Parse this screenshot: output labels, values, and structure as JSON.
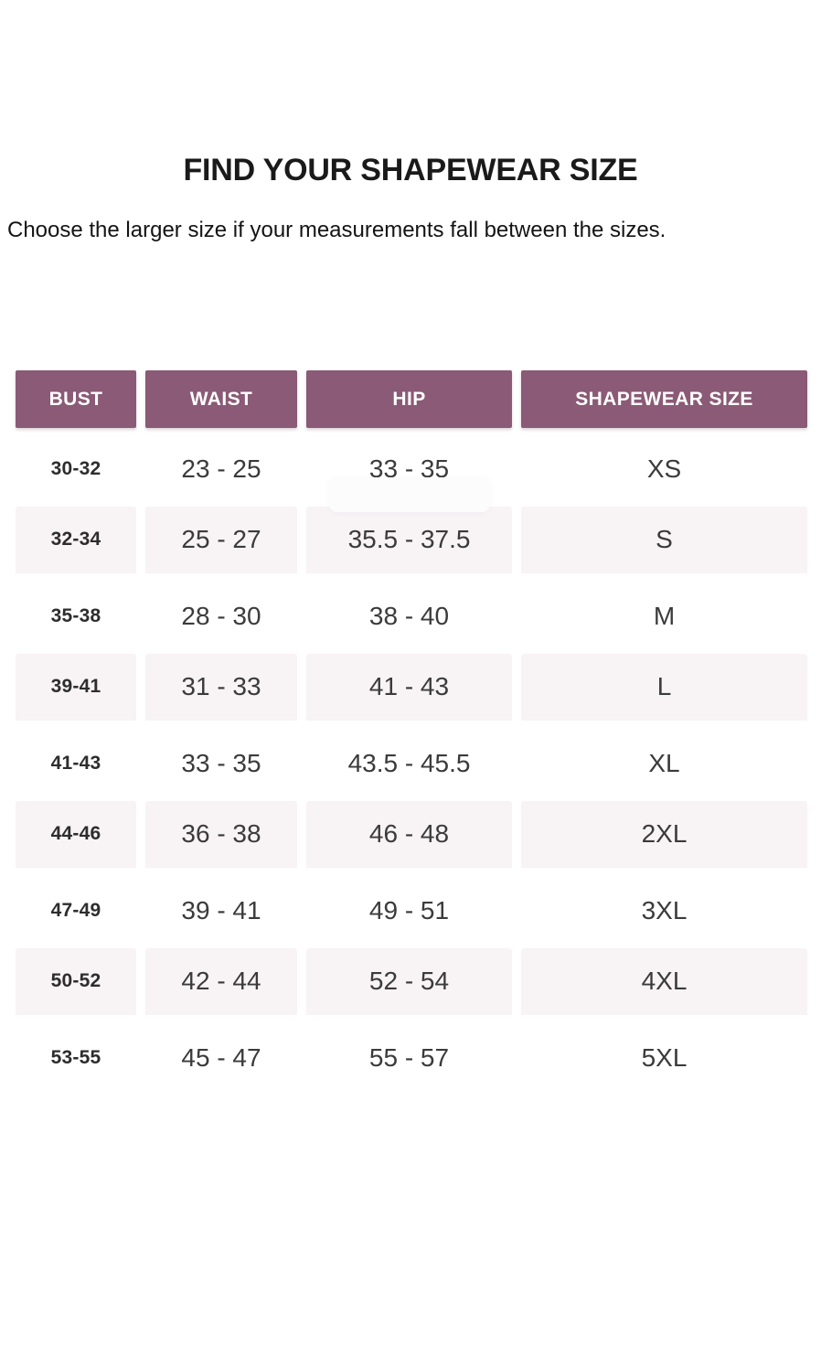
{
  "page": {
    "title": "FIND YOUR SHAPEWEAR SIZE",
    "subtitle": "Choose the larger size if your measurements fall between the sizes."
  },
  "colors": {
    "header_bg": "#8a5a76",
    "header_text": "#ffffff",
    "alt_row_bg": "#f8f3f5",
    "title_text": "#1a1a1a",
    "body_text": "#3b3b3b"
  },
  "chart_data": {
    "type": "table",
    "title": "FIND YOUR SHAPEWEAR SIZE",
    "note": "Choose the larger size if your measurements fall between the sizes.",
    "columns": [
      "BUST",
      "WAIST",
      "HIP",
      "SHAPEWEAR SIZE"
    ],
    "rows": [
      {
        "bust": "30-32",
        "waist": "23 - 25",
        "hip": "33 - 35",
        "size": "XS"
      },
      {
        "bust": "32-34",
        "waist": "25 - 27",
        "hip": "35.5 - 37.5",
        "size": "S"
      },
      {
        "bust": "35-38",
        "waist": "28 - 30",
        "hip": "38 - 40",
        "size": "M"
      },
      {
        "bust": "39-41",
        "waist": "31 - 33",
        "hip": "41 - 43",
        "size": "L"
      },
      {
        "bust": "41-43",
        "waist": "33 - 35",
        "hip": "43.5 - 45.5",
        "size": "XL"
      },
      {
        "bust": "44-46",
        "waist": "36 - 38",
        "hip": "46 - 48",
        "size": "2XL"
      },
      {
        "bust": "47-49",
        "waist": "39 - 41",
        "hip": "49 - 51",
        "size": "3XL"
      },
      {
        "bust": "50-52",
        "waist": "42 - 44",
        "hip": "52 - 54",
        "size": "4XL"
      },
      {
        "bust": "53-55",
        "waist": "45 - 47",
        "hip": "55 - 57",
        "size": "5XL"
      }
    ]
  }
}
